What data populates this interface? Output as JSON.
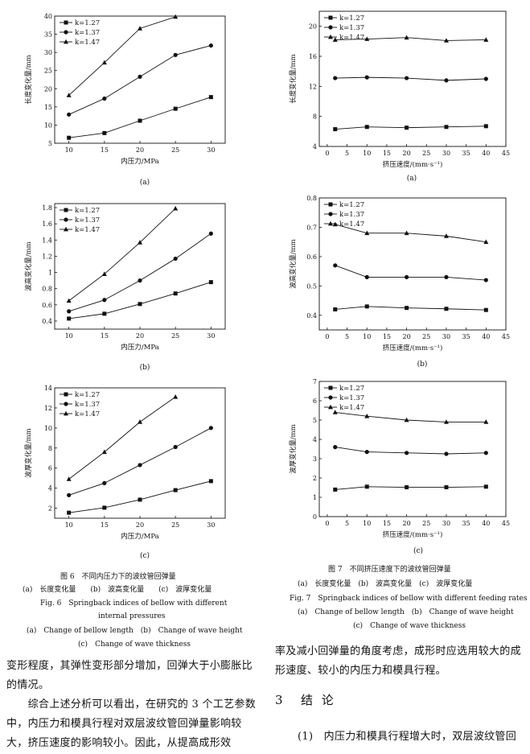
{
  "figure6": {
    "caption_cn": "图 6　不同内压力下的波纹管回弹量",
    "sub_cn": "(a)　长度变化量　　(b)　波高变化量　　(c)　波厚变化量",
    "caption_en_1": "Fig. 6　Springback indices of bellow with different",
    "caption_en_2": "internal pressures",
    "sub_en_1": "(a)　Change of bellow length　(b)　Change of wave height",
    "sub_en_2": "(c)　Change of wave thickness"
  },
  "figure7": {
    "caption_cn": "图 7　不同挤压速度下的波纹管回弹量",
    "sub_cn": "(a)　长度变化量　(b)　波高变化量　(c)　波厚变化量",
    "caption_en": "Fig. 7　Springback indices of bellow with different feeding rates",
    "sub_en_1": "(a)　Change of bellow length　(b)　Change of wave height",
    "sub_en_2": "(c)　Change of wave thickness"
  },
  "text": {
    "left_para_1": "变形程度，其弹性变形部分增加，回弹大于小膨胀比的情况。",
    "left_para_2": "　　综合上述分析可以看出，在研究的 3 个工艺参数中，内压力和模具行程对双层波纹管回弹量影响较大，挤压速度的影响较小。因此，从提高成形效",
    "right_para_1": "率及减小回弹量的角度考虑，成形时应选用较大的成形速度、较小的内压力和模具行程。",
    "section_num": "3",
    "section_title": "结 论",
    "right_para_2": "(1)　内压力和模具行程增大时，双层波纹管回"
  },
  "chart_data": [
    {
      "id": "6a",
      "type": "line",
      "sublabel": "(a)",
      "xlabel": "内压力/MPa",
      "ylabel": "长度变化量/mm",
      "xlim": [
        8,
        32
      ],
      "ylim": [
        5,
        40
      ],
      "xticks": [
        10,
        15,
        20,
        25,
        30
      ],
      "yticks": [
        5,
        10,
        15,
        20,
        25,
        30,
        35,
        40
      ],
      "legend_pos": "top-left",
      "series": [
        {
          "name": "k=1.27",
          "marker": "square",
          "x": [
            10,
            15,
            20,
            25,
            30
          ],
          "values": [
            6.5,
            7.8,
            11.2,
            14.5,
            17.7
          ]
        },
        {
          "name": "k=1.37",
          "marker": "circle",
          "x": [
            10,
            15,
            20,
            25,
            30
          ],
          "values": [
            12.9,
            17.3,
            23.3,
            29.3,
            31.9
          ]
        },
        {
          "name": "k=1.47",
          "marker": "triangle",
          "x": [
            10,
            15,
            20,
            25
          ],
          "values": [
            18.2,
            27.2,
            36.6,
            39.8
          ]
        }
      ]
    },
    {
      "id": "7a",
      "type": "line",
      "sublabel": "(a)",
      "xlabel": "挤压速度/(mm·s⁻¹)",
      "ylabel": "长度变化量/mm",
      "xlim": [
        -2,
        45
      ],
      "ylim": [
        4,
        22
      ],
      "xticks": [
        0,
        5,
        10,
        15,
        20,
        25,
        30,
        35,
        40,
        45
      ],
      "yticks": [
        4,
        8,
        12,
        16,
        20
      ],
      "legend_pos": "top-left",
      "series": [
        {
          "name": "k=1.27",
          "marker": "square",
          "x": [
            2,
            10,
            20,
            30,
            40
          ],
          "values": [
            6.3,
            6.6,
            6.5,
            6.6,
            6.7
          ]
        },
        {
          "name": "k=1.37",
          "marker": "circle",
          "x": [
            2,
            10,
            20,
            30,
            40
          ],
          "values": [
            13.1,
            13.2,
            13.1,
            12.8,
            13.0
          ]
        },
        {
          "name": "k=1.47",
          "marker": "triangle",
          "x": [
            2,
            10,
            20,
            30,
            40
          ],
          "values": [
            18.2,
            18.3,
            18.5,
            18.1,
            18.2
          ]
        }
      ]
    },
    {
      "id": "6b",
      "type": "line",
      "sublabel": "(b)",
      "xlabel": "内压力/MPa",
      "ylabel": "波高变化量/mm",
      "xlim": [
        8,
        32
      ],
      "ylim": [
        0.3,
        1.85
      ],
      "xticks": [
        10,
        15,
        20,
        25,
        30
      ],
      "yticks": [
        0.4,
        0.6,
        0.8,
        1.0,
        1.2,
        1.4,
        1.6,
        1.8
      ],
      "legend_pos": "top-left",
      "series": [
        {
          "name": "k=1.27",
          "marker": "square",
          "x": [
            10,
            15,
            20,
            25,
            30
          ],
          "values": [
            0.43,
            0.49,
            0.61,
            0.74,
            0.88
          ]
        },
        {
          "name": "k=1.37",
          "marker": "circle",
          "x": [
            10,
            15,
            20,
            25,
            30
          ],
          "values": [
            0.52,
            0.66,
            0.9,
            1.17,
            1.48
          ]
        },
        {
          "name": "k=1.47",
          "marker": "triangle",
          "x": [
            10,
            15,
            20,
            25
          ],
          "values": [
            0.65,
            0.98,
            1.37,
            1.79
          ]
        }
      ]
    },
    {
      "id": "7b",
      "type": "line",
      "sublabel": "(b)",
      "xlabel": "挤压速度/(mm·s⁻¹)",
      "ylabel": "波高变化量/mm",
      "xlim": [
        -2,
        45
      ],
      "ylim": [
        0.35,
        0.8
      ],
      "xticks": [
        0,
        5,
        10,
        15,
        20,
        25,
        30,
        35,
        40,
        45
      ],
      "yticks": [
        0.4,
        0.5,
        0.6,
        0.7,
        0.8
      ],
      "legend_pos": "top-left",
      "series": [
        {
          "name": "k=1.27",
          "marker": "square",
          "x": [
            2,
            10,
            20,
            30,
            40
          ],
          "values": [
            0.42,
            0.43,
            0.425,
            0.422,
            0.418
          ]
        },
        {
          "name": "k=1.37",
          "marker": "circle",
          "x": [
            2,
            10,
            20,
            30,
            40
          ],
          "values": [
            0.57,
            0.53,
            0.53,
            0.53,
            0.52
          ]
        },
        {
          "name": "k=1.47",
          "marker": "triangle",
          "x": [
            2,
            10,
            20,
            30,
            40
          ],
          "values": [
            0.71,
            0.68,
            0.68,
            0.67,
            0.65
          ]
        }
      ]
    },
    {
      "id": "6c",
      "type": "line",
      "sublabel": "(c)",
      "xlabel": "内压力/MPa",
      "ylabel": "波厚变化量/mm",
      "xlim": [
        8,
        32
      ],
      "ylim": [
        1,
        14
      ],
      "xticks": [
        10,
        15,
        20,
        25,
        30
      ],
      "yticks": [
        2,
        4,
        6,
        8,
        10,
        12,
        14
      ],
      "legend_pos": "top-left",
      "series": [
        {
          "name": "k=1.27",
          "marker": "square",
          "x": [
            10,
            15,
            20,
            25,
            30
          ],
          "values": [
            1.55,
            2.05,
            2.85,
            3.8,
            4.7
          ]
        },
        {
          "name": "k=1.37",
          "marker": "circle",
          "x": [
            10,
            15,
            20,
            25,
            30
          ],
          "values": [
            3.3,
            4.5,
            6.3,
            8.1,
            10.0
          ]
        },
        {
          "name": "k=1.47",
          "marker": "triangle",
          "x": [
            10,
            15,
            20,
            25
          ],
          "values": [
            4.9,
            7.6,
            10.6,
            13.1
          ]
        }
      ]
    },
    {
      "id": "7c",
      "type": "line",
      "sublabel": "(c)",
      "xlabel": "挤压速度/(mm·s⁻¹)",
      "ylabel": "波厚变化量/mm",
      "xlim": [
        -2,
        45
      ],
      "ylim": [
        0,
        7
      ],
      "xticks": [
        0,
        5,
        10,
        15,
        20,
        25,
        30,
        35,
        40,
        45
      ],
      "yticks": [
        0,
        1,
        2,
        3,
        4,
        5,
        6,
        7
      ],
      "legend_pos": "top-left",
      "series": [
        {
          "name": "k=1.27",
          "marker": "square",
          "x": [
            2,
            10,
            20,
            30,
            40
          ],
          "values": [
            1.4,
            1.55,
            1.52,
            1.52,
            1.55
          ]
        },
        {
          "name": "k=1.37",
          "marker": "circle",
          "x": [
            2,
            10,
            20,
            30,
            40
          ],
          "values": [
            3.6,
            3.35,
            3.3,
            3.25,
            3.3
          ]
        },
        {
          "name": "k=1.47",
          "marker": "triangle",
          "x": [
            2,
            10,
            20,
            30,
            40
          ],
          "values": [
            5.4,
            5.2,
            5.0,
            4.9,
            4.9
          ]
        }
      ]
    }
  ]
}
